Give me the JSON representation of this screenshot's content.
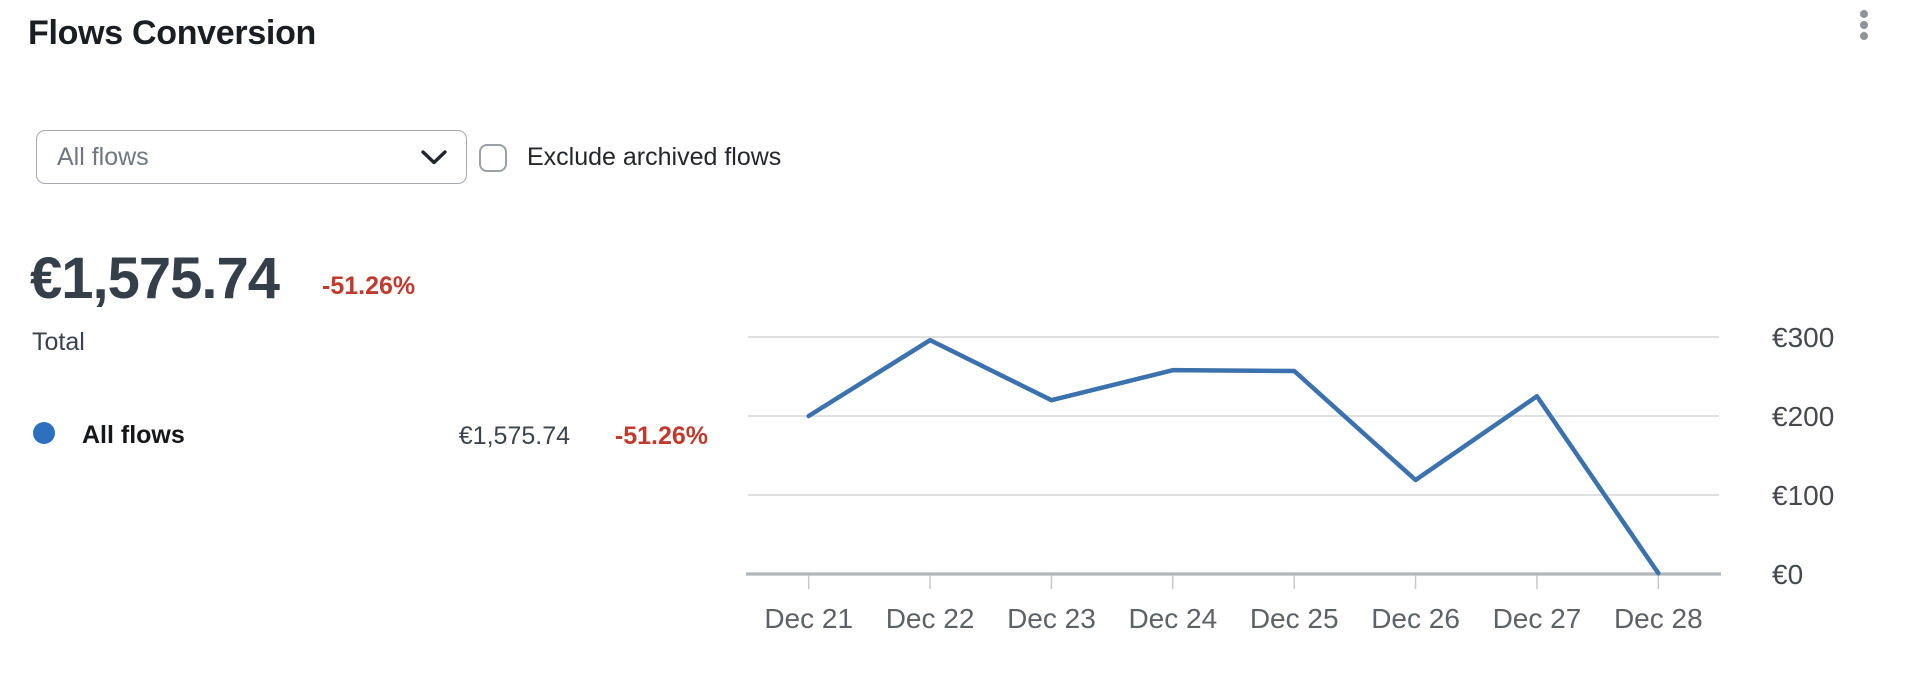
{
  "header": {
    "title": "Flows Conversion"
  },
  "filters": {
    "flow_select": {
      "value": "All flows"
    },
    "exclude_archived": {
      "label": "Exclude archived flows",
      "checked": false
    }
  },
  "summary": {
    "total_value": "€1,575.74",
    "total_change": "-51.26%",
    "total_label": "Total"
  },
  "legend": {
    "series_label": "All flows",
    "series_value": "€1,575.74",
    "series_change": "-51.26%",
    "dot_color": "#2c71c0"
  },
  "colors": {
    "line_blue": "#3b72ad",
    "legend_dot_blue": "#2c71c0",
    "negative_red": "#c03b2d",
    "gridline_gray": "#d3d6d9",
    "axis_gray": "#b2b6ba"
  },
  "chart_data": {
    "type": "line",
    "title": "",
    "xlabel": "",
    "ylabel": "",
    "categories": [
      "Dec 21",
      "Dec 22",
      "Dec 23",
      "Dec 24",
      "Dec 25",
      "Dec 26",
      "Dec 27",
      "Dec 28"
    ],
    "series": [
      {
        "name": "All flows",
        "color": "#3b72ad",
        "values": [
          200,
          296,
          220,
          258,
          257,
          119,
          225,
          1
        ]
      }
    ],
    "ylim": [
      0,
      300
    ],
    "y_ticks": [
      {
        "value": 0,
        "label": "€0"
      },
      {
        "value": 100,
        "label": "€100"
      },
      {
        "value": 200,
        "label": "€200"
      },
      {
        "value": 300,
        "label": "€300"
      }
    ],
    "grid": true,
    "y_axis_position": "right",
    "legend_position": "left-outside"
  }
}
